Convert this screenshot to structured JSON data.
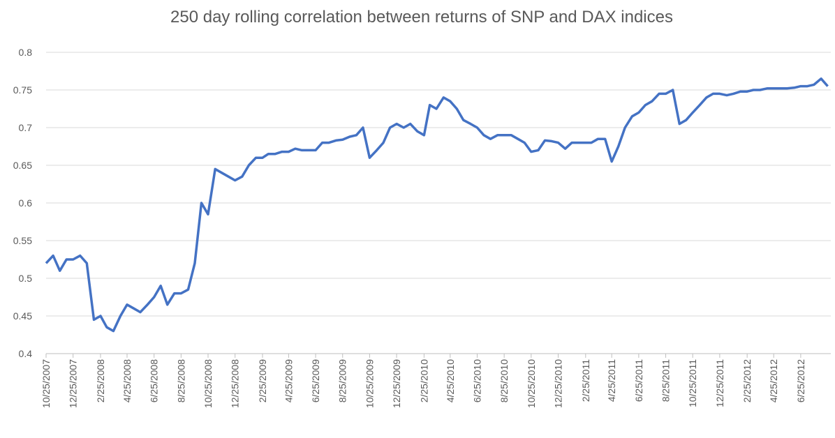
{
  "chart_data": {
    "type": "line",
    "title": "250 day rolling correlation between returns of SNP and DAX indices",
    "x": [
      "10/25/2007",
      "11/10/2007",
      "11/25/2007",
      "12/10/2007",
      "12/25/2007",
      "1/10/2008",
      "1/25/2008",
      "2/10/2008",
      "2/25/2008",
      "3/10/2008",
      "3/25/2008",
      "4/10/2008",
      "4/25/2008",
      "5/10/2008",
      "5/25/2008",
      "6/10/2008",
      "6/25/2008",
      "7/10/2008",
      "7/25/2008",
      "8/10/2008",
      "8/25/2008",
      "9/10/2008",
      "9/25/2008",
      "10/10/2008",
      "10/25/2008",
      "11/10/2008",
      "11/25/2008",
      "12/10/2008",
      "12/25/2008",
      "1/10/2009",
      "1/25/2009",
      "2/10/2009",
      "2/25/2009",
      "3/10/2009",
      "3/25/2009",
      "4/10/2009",
      "4/25/2009",
      "5/10/2009",
      "5/25/2009",
      "6/10/2009",
      "6/25/2009",
      "7/10/2009",
      "7/25/2009",
      "8/10/2009",
      "8/25/2009",
      "9/10/2009",
      "9/25/2009",
      "10/10/2009",
      "10/25/2009",
      "11/10/2009",
      "11/25/2009",
      "12/10/2009",
      "12/25/2009",
      "1/10/2010",
      "1/25/2010",
      "2/10/2010",
      "2/25/2010",
      "3/10/2010",
      "3/25/2010",
      "4/10/2010",
      "4/25/2010",
      "5/10/2010",
      "5/25/2010",
      "6/10/2010",
      "6/25/2010",
      "7/10/2010",
      "7/25/2010",
      "8/10/2010",
      "8/25/2010",
      "9/10/2010",
      "9/25/2010",
      "10/10/2010",
      "10/25/2010",
      "11/10/2010",
      "11/25/2010",
      "12/10/2010",
      "12/25/2010",
      "1/10/2011",
      "1/25/2011",
      "2/10/2011",
      "2/25/2011",
      "3/10/2011",
      "3/25/2011",
      "4/10/2011",
      "4/25/2011",
      "5/10/2011",
      "5/25/2011",
      "6/10/2011",
      "6/25/2011",
      "7/10/2011",
      "7/25/2011",
      "8/10/2011",
      "8/25/2011",
      "9/10/2011",
      "9/25/2011",
      "10/10/2011",
      "10/25/2011",
      "11/10/2011",
      "11/25/2011",
      "12/10/2011",
      "12/25/2011",
      "1/10/2012",
      "1/25/2012",
      "2/10/2012",
      "2/25/2012",
      "3/10/2012",
      "3/25/2012",
      "4/10/2012",
      "4/25/2012",
      "5/10/2012",
      "5/25/2012",
      "6/10/2012",
      "6/25/2012",
      "7/10/2012",
      "7/25/2012",
      "8/10/2012",
      "8/25/2012"
    ],
    "series": [
      {
        "color": "#4472c4",
        "values": [
          0.52,
          0.53,
          0.51,
          0.525,
          0.525,
          0.53,
          0.52,
          0.445,
          0.45,
          0.435,
          0.43,
          0.45,
          0.465,
          0.46,
          0.455,
          0.465,
          0.475,
          0.49,
          0.465,
          0.48,
          0.48,
          0.485,
          0.52,
          0.6,
          0.585,
          0.645,
          0.64,
          0.635,
          0.63,
          0.635,
          0.65,
          0.66,
          0.66,
          0.665,
          0.665,
          0.668,
          0.668,
          0.672,
          0.67,
          0.67,
          0.67,
          0.68,
          0.68,
          0.683,
          0.684,
          0.688,
          0.69,
          0.7,
          0.66,
          0.67,
          0.68,
          0.7,
          0.705,
          0.7,
          0.705,
          0.695,
          0.69,
          0.73,
          0.725,
          0.74,
          0.735,
          0.725,
          0.71,
          0.705,
          0.7,
          0.69,
          0.685,
          0.69,
          0.69,
          0.69,
          0.685,
          0.68,
          0.668,
          0.67,
          0.683,
          0.682,
          0.68,
          0.672,
          0.68,
          0.68,
          0.68,
          0.68,
          0.685,
          0.685,
          0.655,
          0.675,
          0.7,
          0.715,
          0.72,
          0.73,
          0.735,
          0.745,
          0.745,
          0.75,
          0.705,
          0.71,
          0.72,
          0.73,
          0.74,
          0.745,
          0.745,
          0.743,
          0.745,
          0.748,
          0.748,
          0.75,
          0.75,
          0.752,
          0.752,
          0.752,
          0.752,
          0.753,
          0.755,
          0.755,
          0.757,
          0.765,
          0.755
        ]
      }
    ],
    "xlim": [
      "10/25/2007",
      "9/1/2012"
    ],
    "xticks": [
      "10/25/2007",
      "12/25/2007",
      "2/25/2008",
      "4/25/2008",
      "6/25/2008",
      "8/25/2008",
      "10/25/2008",
      "12/25/2008",
      "2/25/2009",
      "4/25/2009",
      "6/25/2009",
      "8/25/2009",
      "10/25/2009",
      "12/25/2009",
      "2/25/2010",
      "4/25/2010",
      "6/25/2010",
      "8/25/2010",
      "10/25/2010",
      "12/25/2010",
      "2/25/2011",
      "4/25/2011",
      "6/25/2011",
      "8/25/2011",
      "10/25/2011",
      "12/25/2011",
      "2/25/2012",
      "4/25/2012",
      "6/25/2012"
    ],
    "ylim": [
      0.4,
      0.8
    ],
    "yticks": [
      0.4,
      0.45,
      0.5,
      0.55,
      0.6,
      0.65,
      0.7,
      0.75,
      0.8
    ],
    "grid": true
  }
}
